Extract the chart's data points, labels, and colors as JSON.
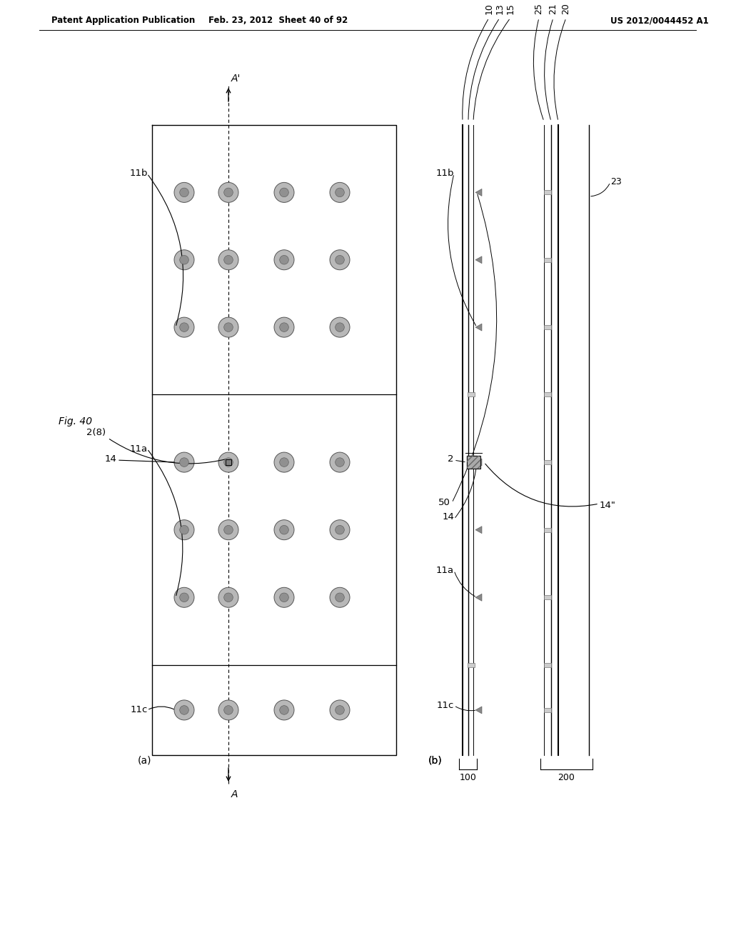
{
  "header_left": "Patent Application Publication",
  "header_center": "Feb. 23, 2012  Sheet 40 of 92",
  "header_right": "US 2012/0044452 A1",
  "bg_color": "#ffffff",
  "line_color": "#000000",
  "dot_fill": "#b8b8b8",
  "dot_edge": "#555555",
  "gray_fill": "#aaaaaa",
  "light_gray": "#d8d8d8"
}
